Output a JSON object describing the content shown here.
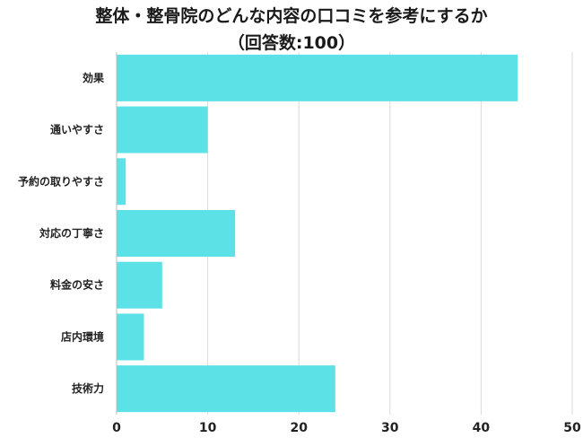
{
  "chart_data": {
    "type": "bar",
    "orientation": "horizontal",
    "title": "整体・整骨院のどんな内容の口コミを参考にするか",
    "subtitle": "（回答数:100）",
    "categories": [
      "効果",
      "通いやすさ",
      "予約の取りやすさ",
      "対応の丁寧さ",
      "料金の安さ",
      "店内環境",
      "技術力"
    ],
    "values": [
      44,
      10,
      1,
      13,
      5,
      3,
      24
    ],
    "xlim": [
      0,
      50
    ],
    "x_ticks": [
      0,
      10,
      20,
      30,
      40,
      50
    ],
    "xlabel": "",
    "ylabel": "",
    "grid": "vertical",
    "bar_color": "#5ce1e6"
  }
}
